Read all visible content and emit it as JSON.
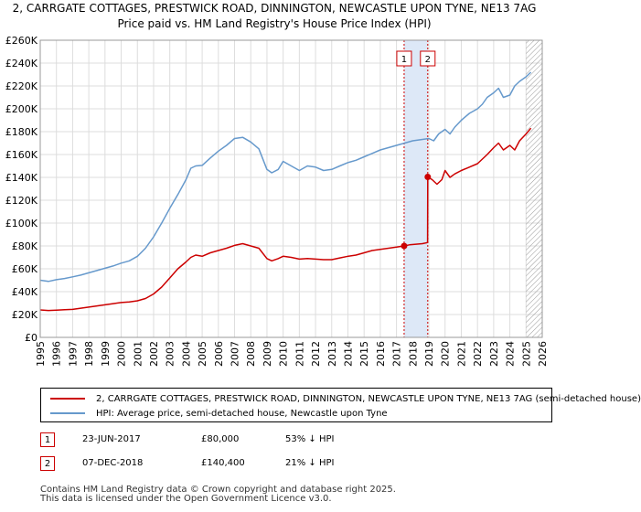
{
  "header": {
    "title_line1": "2, CARRGATE COTTAGES, PRESTWICK ROAD, DINNINGTON, NEWCASTLE UPON TYNE, NE13 7AG",
    "title_line2": "Price paid vs. HM Land Registry's House Price Index (HPI)"
  },
  "colors": {
    "property": "#cc0000",
    "hpi": "#6699cc",
    "shade": "#dde8f7",
    "grid": "#dddddd",
    "marker_line": "#cc0000"
  },
  "chart_data": {
    "type": "line",
    "title": "2, CARRGATE COTTAGES, PRESTWICK ROAD, DINNINGTON, NEWCASTLE UPON TYNE, NE13 7AG",
    "subtitle": "Price paid vs. HM Land Registry's House Price Index (HPI)",
    "xlim": [
      1995,
      2026
    ],
    "ylim": [
      0,
      260000
    ],
    "x_ticks": [
      "1995",
      "1996",
      "1997",
      "1998",
      "1999",
      "2000",
      "2001",
      "2002",
      "2003",
      "2004",
      "2005",
      "2006",
      "2007",
      "2008",
      "2009",
      "2010",
      "2011",
      "2012",
      "2013",
      "2014",
      "2015",
      "2016",
      "2017",
      "2018",
      "2019",
      "2020",
      "2021",
      "2022",
      "2023",
      "2024",
      "2025",
      "2026"
    ],
    "y_ticks": [
      {
        "value": 0,
        "label": "£0"
      },
      {
        "value": 20000,
        "label": "£20K"
      },
      {
        "value": 40000,
        "label": "£40K"
      },
      {
        "value": 60000,
        "label": "£60K"
      },
      {
        "value": 80000,
        "label": "£80K"
      },
      {
        "value": 100000,
        "label": "£100K"
      },
      {
        "value": 120000,
        "label": "£120K"
      },
      {
        "value": 140000,
        "label": "£140K"
      },
      {
        "value": 160000,
        "label": "£160K"
      },
      {
        "value": 180000,
        "label": "£180K"
      },
      {
        "value": 200000,
        "label": "£200K"
      },
      {
        "value": 220000,
        "label": "£220K"
      },
      {
        "value": 240000,
        "label": "£240K"
      },
      {
        "value": 260000,
        "label": "£260K"
      }
    ],
    "grid": true,
    "legend_position": "below",
    "shaded_span": [
      2017.47,
      2018.93
    ],
    "hatched_from": 2025.0,
    "series": [
      {
        "name": "2, CARRGATE COTTAGES, PRESTWICK ROAD, DINNINGTON, NEWCASTLE UPON TYNE, NE13 7AG (semi-detached house)",
        "color": "#cc0000",
        "x": [
          1995.0,
          1995.5,
          1996.0,
          1996.5,
          1997.0,
          1997.5,
          1998.0,
          1998.5,
          1999.0,
          1999.5,
          2000.0,
          2000.5,
          2001.0,
          2001.5,
          2002.0,
          2002.5,
          2003.0,
          2003.5,
          2004.0,
          2004.3,
          2004.6,
          2005.0,
          2005.5,
          2006.0,
          2006.5,
          2007.0,
          2007.5,
          2008.0,
          2008.5,
          2009.0,
          2009.3,
          2009.7,
          2010.0,
          2010.5,
          2011.0,
          2011.5,
          2012.0,
          2012.5,
          2013.0,
          2013.5,
          2014.0,
          2014.5,
          2015.0,
          2015.5,
          2016.0,
          2016.5,
          2017.0,
          2017.47,
          2017.8,
          2018.2,
          2018.6,
          2018.92,
          2018.93,
          2019.2,
          2019.5,
          2019.8,
          2020.0,
          2020.3,
          2020.6,
          2021.0,
          2021.5,
          2022.0,
          2022.3,
          2022.6,
          2023.0,
          2023.3,
          2023.6,
          2024.0,
          2024.3,
          2024.6,
          2025.0,
          2025.3
        ],
        "values": [
          24000,
          23500,
          23800,
          24200,
          24500,
          25500,
          26500,
          27500,
          28500,
          29500,
          30500,
          31000,
          32000,
          34000,
          38000,
          44000,
          52000,
          60000,
          66000,
          70000,
          72000,
          71000,
          74000,
          76000,
          78000,
          80500,
          82000,
          80000,
          78000,
          69000,
          67000,
          69000,
          71000,
          70000,
          68500,
          69000,
          68500,
          68000,
          68000,
          69500,
          71000,
          72000,
          74000,
          76000,
          77000,
          78000,
          79000,
          80000,
          81000,
          81500,
          82000,
          83000,
          140400,
          138000,
          134000,
          138000,
          146000,
          140000,
          143000,
          146000,
          149000,
          152000,
          156000,
          160000,
          166000,
          170000,
          164000,
          168000,
          164000,
          172000,
          178000,
          183000
        ]
      },
      {
        "name": "HPI: Average price, semi-detached house, Newcastle upon Tyne",
        "color": "#6699cc",
        "x": [
          1995.0,
          1995.5,
          1996.0,
          1996.5,
          1997.0,
          1997.5,
          1998.0,
          1998.5,
          1999.0,
          1999.5,
          2000.0,
          2000.5,
          2001.0,
          2001.5,
          2002.0,
          2002.5,
          2003.0,
          2003.5,
          2004.0,
          2004.3,
          2004.6,
          2005.0,
          2005.5,
          2006.0,
          2006.5,
          2007.0,
          2007.5,
          2008.0,
          2008.5,
          2009.0,
          2009.3,
          2009.7,
          2010.0,
          2010.5,
          2011.0,
          2011.5,
          2012.0,
          2012.5,
          2013.0,
          2013.5,
          2014.0,
          2014.5,
          2015.0,
          2015.5,
          2016.0,
          2016.5,
          2017.0,
          2017.5,
          2018.0,
          2018.5,
          2019.0,
          2019.3,
          2019.6,
          2020.0,
          2020.3,
          2020.6,
          2021.0,
          2021.5,
          2022.0,
          2022.3,
          2022.6,
          2023.0,
          2023.3,
          2023.6,
          2024.0,
          2024.3,
          2024.6,
          2025.0,
          2025.3
        ],
        "values": [
          50000,
          49000,
          50500,
          51500,
          53000,
          54500,
          56500,
          58500,
          60500,
          62500,
          65000,
          67000,
          71000,
          78000,
          88000,
          100000,
          113000,
          125000,
          138000,
          148000,
          150000,
          150500,
          157000,
          163000,
          168000,
          174000,
          175000,
          171000,
          165000,
          147000,
          144000,
          147000,
          154000,
          150000,
          146000,
          150000,
          149000,
          146000,
          147000,
          150000,
          153000,
          155000,
          158000,
          161000,
          164000,
          166000,
          168000,
          170000,
          172000,
          173000,
          174000,
          172000,
          178000,
          182000,
          178000,
          184000,
          190000,
          196000,
          200000,
          204000,
          210000,
          214000,
          218000,
          210000,
          212000,
          220000,
          224000,
          228000,
          232000
        ]
      }
    ],
    "markers": [
      {
        "label": "1",
        "x": 2017.47,
        "y": 80000
      },
      {
        "label": "2",
        "x": 2018.93,
        "y": 140400
      }
    ]
  },
  "legend": {
    "property_label": "2, CARRGATE COTTAGES, PRESTWICK ROAD, DINNINGTON, NEWCASTLE UPON TYNE, NE13 7AG (semi-detached house)",
    "hpi_label": "HPI: Average price, semi-detached house, Newcastle upon Tyne"
  },
  "sales": [
    {
      "num": "1",
      "date": "23-JUN-2017",
      "price": "£80,000",
      "hpi": "53% ↓ HPI"
    },
    {
      "num": "2",
      "date": "07-DEC-2018",
      "price": "£140,400",
      "hpi": "21% ↓ HPI"
    }
  ],
  "footer": {
    "line1": "Contains HM Land Registry data © Crown copyright and database right 2025.",
    "line2": "This data is licensed under the Open Government Licence v3.0."
  }
}
